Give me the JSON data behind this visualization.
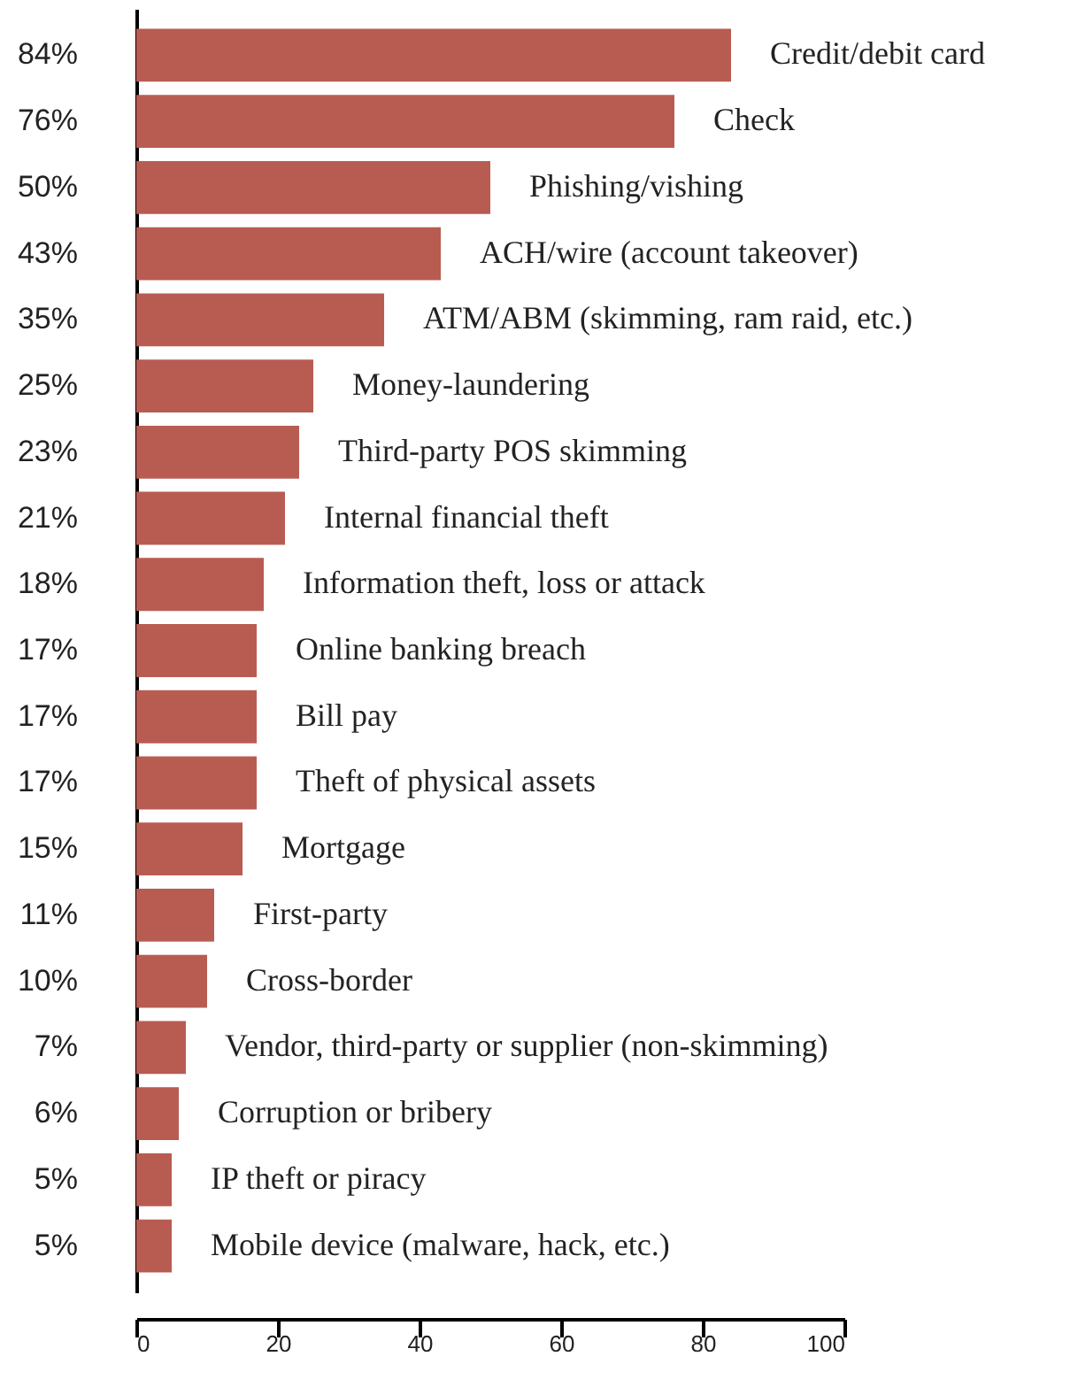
{
  "chart_data": {
    "type": "bar",
    "orientation": "horizontal",
    "categories": [
      "Credit/debit card",
      "Check",
      "Phishing/vishing",
      "ACH/wire (account takeover)",
      "ATM/ABM (skimming, ram raid, etc.)",
      "Money-laundering",
      "Third-party POS skimming",
      "Internal financial theft",
      "Information theft, loss or attack",
      "Online banking breach",
      "Bill pay",
      "Theft of physical assets",
      "Mortgage",
      "First-party",
      "Cross-border",
      "Vendor, third-party or supplier (non-skimming)",
      "Corruption or bribery",
      "IP theft or piracy",
      "Mobile device (malware, hack, etc.)"
    ],
    "values": [
      84,
      76,
      50,
      43,
      35,
      25,
      23,
      21,
      18,
      17,
      17,
      17,
      15,
      11,
      10,
      7,
      6,
      5,
      5
    ],
    "value_labels": [
      "84%",
      "76%",
      "50%",
      "43%",
      "35%",
      "25%",
      "23%",
      "21%",
      "18%",
      "17%",
      "17%",
      "17%",
      "15%",
      "11%",
      "10%",
      "7%",
      "6%",
      "5%",
      "5%"
    ],
    "color": "#b85c52",
    "xlim": [
      0,
      100
    ],
    "xticks": [
      0,
      20,
      40,
      60,
      80,
      100
    ],
    "grid": false
  }
}
